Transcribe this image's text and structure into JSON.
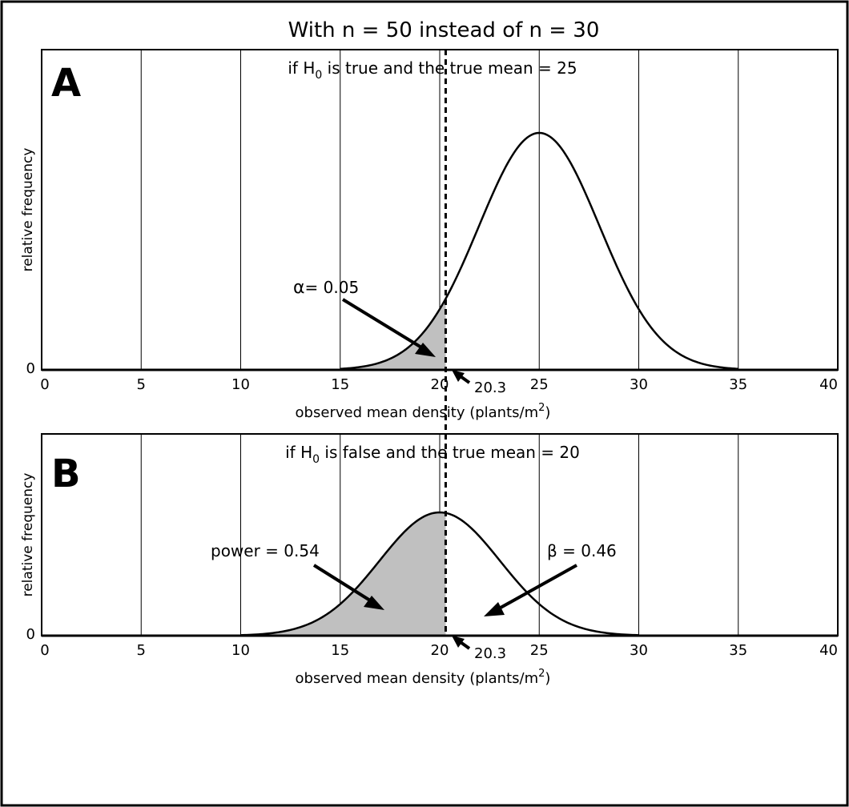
{
  "title": "With n = 50 instead of n = 30",
  "chart_data": [
    {
      "type": "area",
      "panel_letter": "A",
      "subtitle": "if H",
      "subtitle_sub": "0",
      "subtitle_rest": " is true and the true mean = 25",
      "xlabel": "observed mean density (plants/m",
      "xlabel_sup": "2",
      "xlabel_end": ")",
      "ylabel": "relative frequency",
      "y_zero_label": "0",
      "xlim": [
        0,
        40
      ],
      "xticks": [
        0,
        5,
        10,
        15,
        20,
        25,
        30,
        35,
        40
      ],
      "x_tick_labels": [
        "0",
        "5",
        "10",
        "15",
        "20",
        "25",
        "30",
        "35",
        "40"
      ],
      "distribution": {
        "mean": 25,
        "sd": 3.03,
        "peak": 1.0
      },
      "support": [
        15,
        35
      ],
      "shaded_region": [
        15,
        20.3
      ],
      "critical_value": 20.3,
      "critical_label": "20.3",
      "annotations": [
        {
          "text_prefix": "α",
          "text": "= 0.05",
          "points_to_x": 19.5
        }
      ]
    },
    {
      "type": "area",
      "panel_letter": "B",
      "subtitle": "if H",
      "subtitle_sub": "0",
      "subtitle_rest": " is false and the true mean = 20",
      "xlabel": "observed mean density (plants/m",
      "xlabel_sup": "2",
      "xlabel_end": ")",
      "ylabel": "relative frequency",
      "y_zero_label": "0",
      "xlim": [
        0,
        40
      ],
      "xticks": [
        0,
        5,
        10,
        15,
        20,
        25,
        30,
        35,
        40
      ],
      "x_tick_labels": [
        "0",
        "5",
        "10",
        "15",
        "20",
        "25",
        "30",
        "35",
        "40"
      ],
      "distribution": {
        "mean": 20,
        "sd": 3.03,
        "peak": 1.0
      },
      "support": [
        10,
        30
      ],
      "shaded_region": [
        10,
        20.3
      ],
      "critical_value": 20.3,
      "critical_label": "20.3",
      "annotations": [
        {
          "text": "power = 0.54",
          "region": "left of critical value"
        },
        {
          "text": "β = 0.46",
          "region": "right of critical value"
        }
      ]
    }
  ],
  "colors": {
    "shade": "#c0c0c0",
    "line": "#000000",
    "background": "#ffffff"
  }
}
